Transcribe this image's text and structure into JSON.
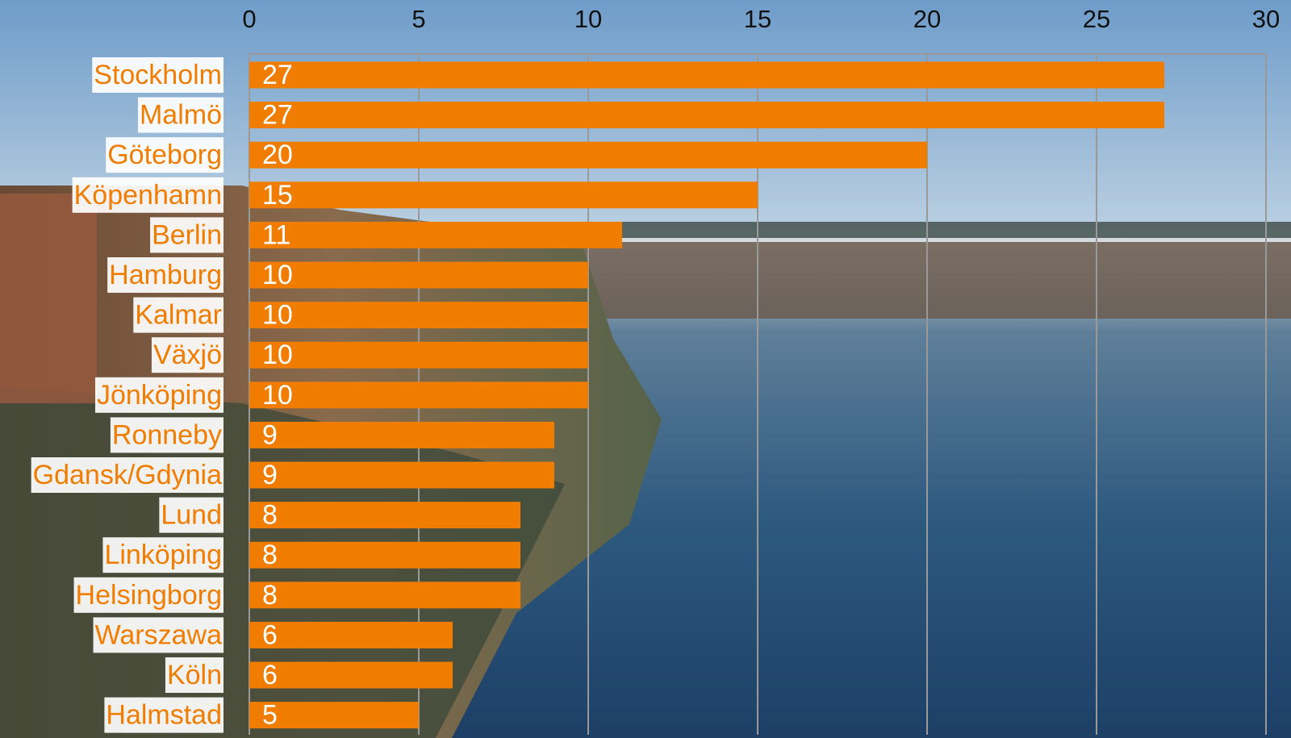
{
  "chart_data": {
    "type": "bar",
    "orientation": "horizontal",
    "categories": [
      "Stockholm",
      "Malmö",
      "Göteborg",
      "Köpenhamn",
      "Berlin",
      "Hamburg",
      "Kalmar",
      "Växjö",
      "Jönköping",
      "Ronneby",
      "Gdansk/Gdynia",
      "Lund",
      "Linköping",
      "Helsingborg",
      "Warszawa",
      "Köln",
      "Halmstad"
    ],
    "values": [
      27,
      27,
      20,
      15,
      11,
      10,
      10,
      10,
      10,
      9,
      9,
      8,
      8,
      8,
      6,
      6,
      5
    ],
    "color": "#f07d00",
    "xlim": [
      0,
      30
    ],
    "xticks": [
      0,
      5,
      10,
      15,
      20,
      25,
      30
    ],
    "grid": true
  }
}
